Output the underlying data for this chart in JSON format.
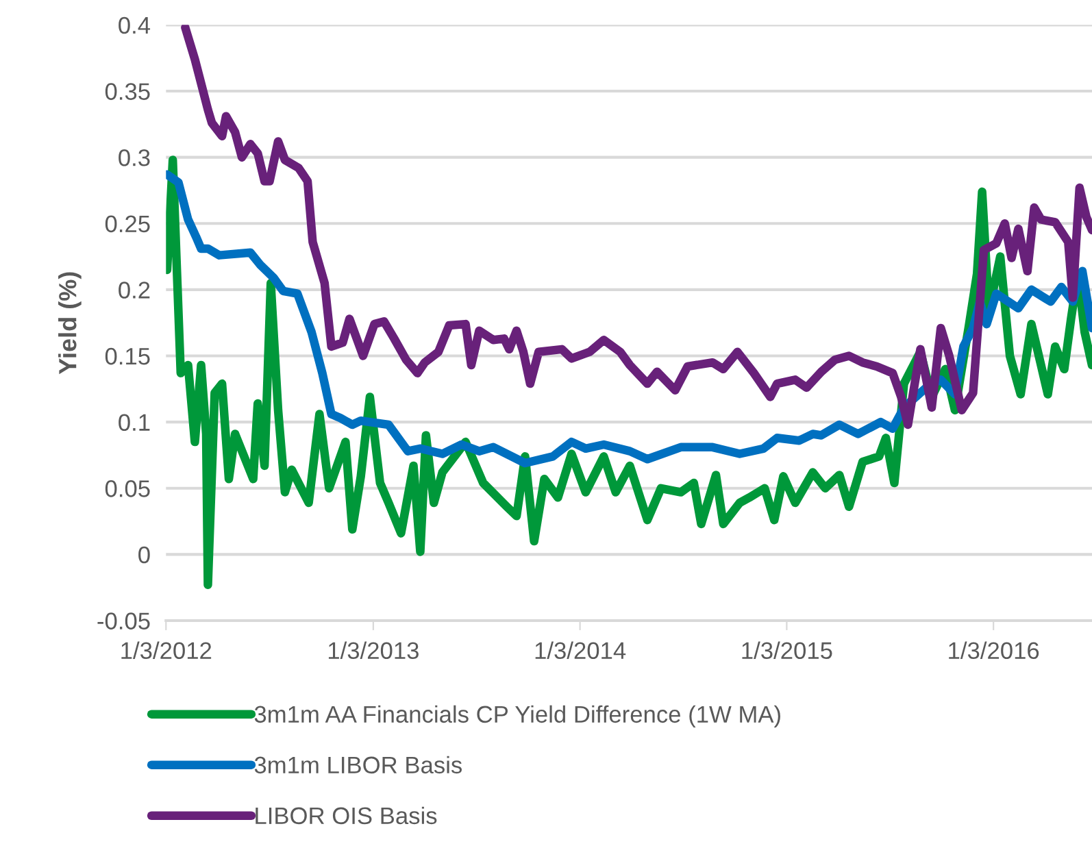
{
  "chart_data": {
    "type": "line",
    "ylabel": "Yield (%)",
    "xlim": [
      "2012-01-03",
      "2016-06-25"
    ],
    "xticks": [
      {
        "value": "2012-01-03",
        "label": "1/3/2012"
      },
      {
        "value": "2013-01-03",
        "label": "1/3/2013"
      },
      {
        "value": "2014-01-03",
        "label": "1/3/2014"
      },
      {
        "value": "2015-01-03",
        "label": "1/3/2015"
      },
      {
        "value": "2016-01-03",
        "label": "1/3/2016"
      }
    ],
    "ylim": [
      -0.05,
      0.4
    ],
    "yticks": [
      -0.05,
      0,
      0.05,
      0.1,
      0.15,
      0.2,
      0.25,
      0.3,
      0.35,
      0.4
    ],
    "grid": "y",
    "legend": "bottom",
    "marker": "none",
    "line_style": "solid",
    "series": [
      {
        "name": "3m1m AA Financials CP Yield Difference (1W MA)",
        "color": "#00983a",
        "x": [
          "2012-01-05",
          "2012-01-15",
          "2012-01-29",
          "2012-02-11",
          "2012-02-23",
          "2012-03-05",
          "2012-03-14",
          "2012-03-17",
          "2012-03-29",
          "2012-04-11",
          "2012-04-23",
          "2012-05-04",
          "2012-06-05",
          "2012-06-13",
          "2012-06-25",
          "2012-07-06",
          "2012-07-19",
          "2012-07-31",
          "2012-08-12",
          "2012-09-11",
          "2012-09-30",
          "2012-10-17",
          "2012-11-15",
          "2012-11-27",
          "2012-12-12",
          "2012-12-28",
          "2013-01-15",
          "2013-01-30",
          "2013-02-21",
          "2013-03-15",
          "2013-03-27",
          "2013-04-06",
          "2013-04-20",
          "2013-05-05",
          "2013-06-15",
          "2013-07-16",
          "2013-08-27",
          "2013-09-13",
          "2013-09-28",
          "2013-10-14",
          "2013-11-01",
          "2013-11-25",
          "2013-12-19",
          "2014-01-13",
          "2014-02-14",
          "2014-03-07",
          "2014-04-01",
          "2014-05-02",
          "2014-05-26",
          "2014-06-30",
          "2014-07-23",
          "2014-08-05",
          "2014-08-31",
          "2014-09-13",
          "2014-10-12",
          "2014-10-29",
          "2014-11-25",
          "2014-12-12",
          "2014-12-28",
          "2015-01-18",
          "2015-02-18",
          "2015-03-12",
          "2015-04-06",
          "2015-04-23",
          "2015-05-17",
          "2015-06-15",
          "2015-06-27",
          "2015-07-12",
          "2015-07-29",
          "2015-08-27",
          "2015-09-16",
          "2015-10-10",
          "2015-10-27",
          "2015-11-20",
          "2015-12-05",
          "2015-12-14",
          "2015-12-26",
          "2016-01-15",
          "2016-02-01",
          "2016-02-20",
          "2016-03-10",
          "2016-04-08",
          "2016-04-21",
          "2016-05-07",
          "2016-05-19",
          "2016-05-31",
          "2016-06-12",
          "2016-06-25"
        ],
        "values": [
          0.215,
          0.298,
          0.137,
          0.143,
          0.085,
          0.143,
          0.091,
          -0.023,
          0.122,
          0.129,
          0.057,
          0.091,
          0.057,
          0.114,
          0.067,
          0.205,
          0.109,
          0.047,
          0.064,
          0.039,
          0.106,
          0.05,
          0.085,
          0.019,
          0.059,
          0.119,
          0.054,
          0.039,
          0.016,
          0.067,
          0.002,
          0.09,
          0.039,
          0.062,
          0.085,
          0.054,
          0.036,
          0.029,
          0.074,
          0.01,
          0.057,
          0.043,
          0.076,
          0.047,
          0.074,
          0.047,
          0.067,
          0.026,
          0.05,
          0.047,
          0.054,
          0.023,
          0.06,
          0.023,
          0.039,
          0.043,
          0.05,
          0.026,
          0.059,
          0.039,
          0.062,
          0.05,
          0.06,
          0.036,
          0.07,
          0.074,
          0.088,
          0.054,
          0.129,
          0.153,
          0.119,
          0.14,
          0.109,
          0.171,
          0.212,
          0.274,
          0.184,
          0.225,
          0.15,
          0.121,
          0.174,
          0.121,
          0.157,
          0.14,
          0.178,
          0.212,
          0.168,
          0.143
        ]
      },
      {
        "name": "3m1m LIBOR Basis",
        "color": "#0070c0",
        "x": [
          "2012-01-05",
          "2012-01-25",
          "2012-02-11",
          "2012-02-25",
          "2012-03-05",
          "2012-03-17",
          "2012-04-06",
          "2012-05-31",
          "2012-06-17",
          "2012-07-11",
          "2012-07-28",
          "2012-08-22",
          "2012-09-16",
          "2012-10-05",
          "2012-10-21",
          "2012-11-06",
          "2012-11-27",
          "2012-12-12",
          "2012-12-28",
          "2013-01-30",
          "2013-03-05",
          "2013-03-27",
          "2013-05-05",
          "2013-06-08",
          "2013-07-09",
          "2013-08-03",
          "2013-09-28",
          "2013-11-16",
          "2013-12-19",
          "2014-01-13",
          "2014-02-14",
          "2014-04-01",
          "2014-05-02",
          "2014-06-30",
          "2014-08-25",
          "2014-10-12",
          "2014-11-23",
          "2014-12-17",
          "2015-01-25",
          "2015-02-18",
          "2015-03-05",
          "2015-04-06",
          "2015-05-09",
          "2015-06-18",
          "2015-07-09",
          "2015-07-29",
          "2015-09-09",
          "2015-10-02",
          "2015-10-27",
          "2015-11-11",
          "2015-11-28",
          "2015-12-10",
          "2015-12-22",
          "2016-01-08",
          "2016-02-16",
          "2016-03-10",
          "2016-04-13",
          "2016-05-02",
          "2016-05-22",
          "2016-06-08",
          "2016-06-25"
        ],
        "values": [
          0.287,
          0.281,
          0.253,
          0.24,
          0.231,
          0.231,
          0.226,
          0.228,
          0.219,
          0.209,
          0.199,
          0.197,
          0.168,
          0.137,
          0.106,
          0.103,
          0.098,
          0.101,
          0.1,
          0.098,
          0.078,
          0.08,
          0.076,
          0.083,
          0.078,
          0.081,
          0.069,
          0.074,
          0.085,
          0.08,
          0.083,
          0.078,
          0.072,
          0.081,
          0.081,
          0.076,
          0.08,
          0.088,
          0.086,
          0.091,
          0.09,
          0.098,
          0.091,
          0.1,
          0.095,
          0.111,
          0.127,
          0.132,
          0.121,
          0.157,
          0.171,
          0.191,
          0.174,
          0.197,
          0.186,
          0.2,
          0.191,
          0.202,
          0.191,
          0.214,
          0.171
        ]
      },
      {
        "name": "LIBOR OIS Basis",
        "color": "#68217a",
        "x": [
          "2012-02-06",
          "2012-02-23",
          "2012-03-17",
          "2012-03-24",
          "2012-04-11",
          "2012-04-18",
          "2012-05-04",
          "2012-05-16",
          "2012-05-31",
          "2012-06-13",
          "2012-06-25",
          "2012-07-04",
          "2012-07-19",
          "2012-07-31",
          "2012-08-24",
          "2012-09-09",
          "2012-09-18",
          "2012-10-09",
          "2012-10-21",
          "2012-11-10",
          "2012-11-22",
          "2012-12-16",
          "2013-01-05",
          "2013-01-22",
          "2013-02-09",
          "2013-03-02",
          "2013-03-22",
          "2013-04-04",
          "2013-04-28",
          "2013-05-17",
          "2013-06-15",
          "2013-06-25",
          "2013-07-09",
          "2013-08-03",
          "2013-08-22",
          "2013-08-31",
          "2013-09-13",
          "2013-09-25",
          "2013-10-07",
          "2013-10-22",
          "2013-12-02",
          "2013-12-19",
          "2014-01-20",
          "2014-02-14",
          "2014-03-15",
          "2014-04-01",
          "2014-05-02",
          "2014-05-19",
          "2014-06-20",
          "2014-07-12",
          "2014-08-25",
          "2014-09-13",
          "2014-10-08",
          "2014-11-06",
          "2014-12-05",
          "2014-12-17",
          "2015-01-18",
          "2015-02-07",
          "2015-03-05",
          "2015-03-29",
          "2015-04-23",
          "2015-05-17",
          "2015-06-11",
          "2015-07-09",
          "2015-07-24",
          "2015-08-05",
          "2015-08-27",
          "2015-09-16",
          "2015-10-02",
          "2015-10-17",
          "2015-11-08",
          "2015-11-28",
          "2015-12-17",
          "2016-01-08",
          "2016-01-23",
          "2016-02-04",
          "2016-02-16",
          "2016-03-03",
          "2016-03-15",
          "2016-03-27",
          "2016-04-21",
          "2016-05-14",
          "2016-05-22",
          "2016-06-03",
          "2016-06-15",
          "2016-06-25"
        ],
        "values": [
          0.398,
          0.374,
          0.336,
          0.326,
          0.316,
          0.331,
          0.319,
          0.3,
          0.31,
          0.303,
          0.282,
          0.282,
          0.312,
          0.298,
          0.292,
          0.282,
          0.236,
          0.205,
          0.157,
          0.16,
          0.178,
          0.15,
          0.174,
          0.176,
          0.163,
          0.147,
          0.137,
          0.145,
          0.153,
          0.173,
          0.174,
          0.143,
          0.169,
          0.162,
          0.163,
          0.155,
          0.169,
          0.153,
          0.129,
          0.153,
          0.155,
          0.148,
          0.153,
          0.162,
          0.153,
          0.143,
          0.129,
          0.138,
          0.124,
          0.142,
          0.145,
          0.14,
          0.153,
          0.137,
          0.119,
          0.129,
          0.132,
          0.126,
          0.138,
          0.147,
          0.15,
          0.145,
          0.142,
          0.137,
          0.119,
          0.098,
          0.155,
          0.111,
          0.171,
          0.15,
          0.109,
          0.122,
          0.23,
          0.235,
          0.25,
          0.224,
          0.246,
          0.214,
          0.262,
          0.253,
          0.251,
          0.236,
          0.194,
          0.277,
          0.255,
          0.245
        ]
      }
    ]
  }
}
